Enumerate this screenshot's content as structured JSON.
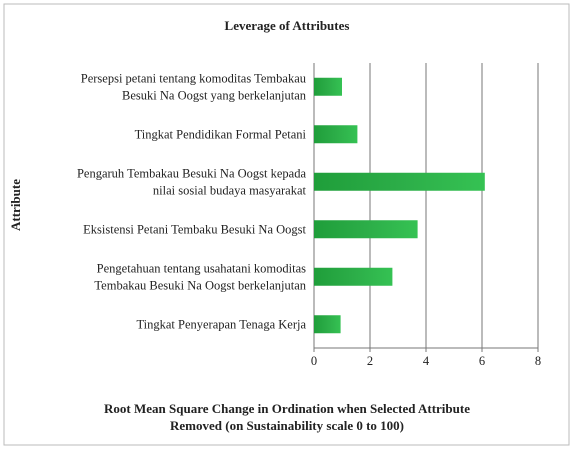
{
  "chart_data": {
    "type": "bar",
    "orientation": "horizontal",
    "title": "Leverage of Attributes",
    "y_label": "Attribute",
    "x_label": "Root Mean Square Change in Ordination when Selected Attribute\nRemoved (on Sustainability scale 0 to 100)",
    "categories": [
      "Persepsi petani tentang komoditas Tembakau\nBesuki Na Oogst yang  berkelanjutan",
      "Tingkat Pendidikan Formal Petani",
      "Pengaruh Tembakau Besuki Na Oogst kepada\nnilai sosial budaya masyarakat",
      "Eksistensi Petani Tembaku Besuki Na  Oogst",
      "Pengetahuan tentang usahatani komoditas\nTembakau Besuki Na  Oogst berkelanjutan",
      "Tingkat Penyerapan Tenaga Kerja"
    ],
    "values": [
      1.0,
      1.55,
      6.1,
      3.7,
      2.8,
      0.95
    ],
    "color": "#2cad48",
    "xlim": [
      0,
      8
    ],
    "xticks": [
      0,
      2,
      4,
      6,
      8
    ],
    "grid": true
  }
}
